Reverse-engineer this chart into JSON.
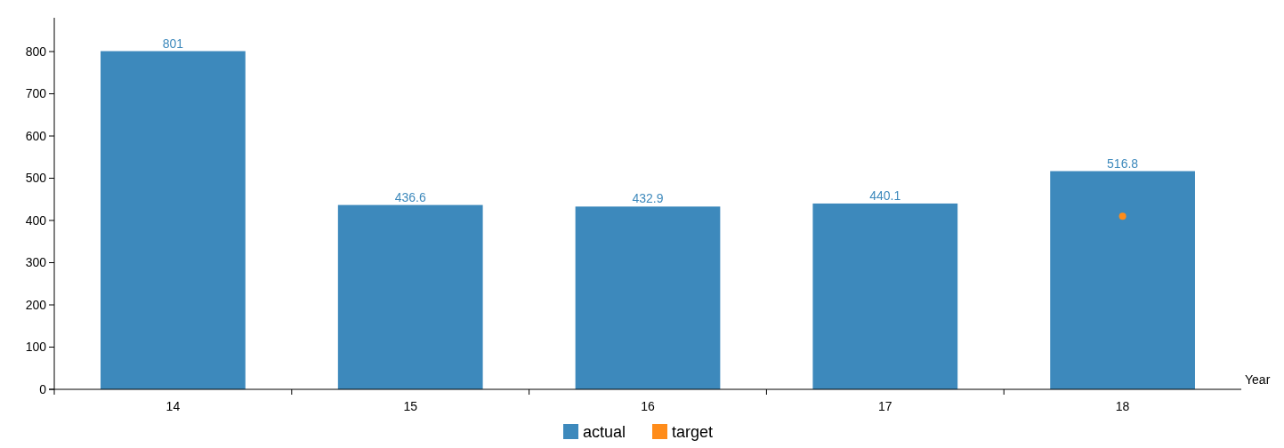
{
  "chart_data": {
    "type": "bar",
    "xlabel": "Year",
    "categories": [
      "14",
      "15",
      "16",
      "17",
      "18"
    ],
    "series": [
      {
        "name": "actual",
        "color": "#3d89bc",
        "values": [
          801,
          436.6,
          432.9,
          440.1,
          516.8
        ],
        "value_labels": [
          "801",
          "436.6",
          "432.9",
          "440.1",
          "516.8"
        ]
      },
      {
        "name": "target",
        "type": "scatter",
        "color": "#ff8c1a",
        "x": [
          "18"
        ],
        "values": [
          410
        ],
        "marker": "circle"
      }
    ],
    "ylim": [
      0,
      880
    ],
    "yticks": [
      0,
      100,
      200,
      300,
      400,
      500,
      600,
      700,
      800
    ],
    "grid": false,
    "legend": "bottom"
  }
}
